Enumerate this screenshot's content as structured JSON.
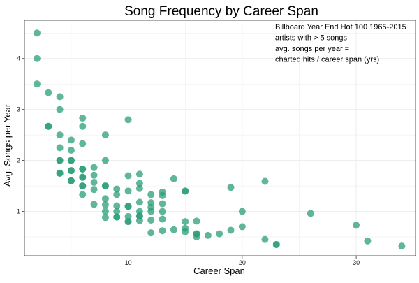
{
  "colors": {
    "point": "#2a9d78",
    "grid": "#ebebeb",
    "panel_border": "#333333",
    "text": "#000000",
    "tick_text": "#222222"
  },
  "chart_data": {
    "type": "scatter",
    "title": "Song Frequency by Career Span",
    "xlabel": "Career Span",
    "ylabel": "Avg. Songs per Year",
    "xlim": [
      0.9,
      35.2
    ],
    "ylim": [
      0.13,
      4.75
    ],
    "xticks": [
      10,
      20,
      30
    ],
    "yticks": [
      1,
      2,
      3,
      4
    ],
    "grid": true,
    "annotation": [
      "Billboard Year End Hot 100 1965-2015",
      "artists with > 5 songs",
      "avg. songs per year =",
      "charted hits / career span (yrs)"
    ],
    "points": [
      {
        "x": 2,
        "y": 4.5
      },
      {
        "x": 2,
        "y": 4.0
      },
      {
        "x": 2,
        "y": 3.5
      },
      {
        "x": 3,
        "y": 3.33
      },
      {
        "x": 3,
        "y": 2.67
      },
      {
        "x": 3,
        "y": 2.67
      },
      {
        "x": 4,
        "y": 3.25
      },
      {
        "x": 4,
        "y": 3.0
      },
      {
        "x": 4,
        "y": 2.5
      },
      {
        "x": 4,
        "y": 2.25
      },
      {
        "x": 4,
        "y": 2.0
      },
      {
        "x": 4,
        "y": 2.0
      },
      {
        "x": 4,
        "y": 1.75
      },
      {
        "x": 4,
        "y": 1.75
      },
      {
        "x": 5,
        "y": 2.4
      },
      {
        "x": 5,
        "y": 2.2
      },
      {
        "x": 5,
        "y": 2.0
      },
      {
        "x": 5,
        "y": 2.0
      },
      {
        "x": 5,
        "y": 1.8
      },
      {
        "x": 5,
        "y": 1.8
      },
      {
        "x": 5,
        "y": 1.6
      },
      {
        "x": 5,
        "y": 1.6
      },
      {
        "x": 6,
        "y": 2.83
      },
      {
        "x": 6,
        "y": 2.67
      },
      {
        "x": 6,
        "y": 2.33
      },
      {
        "x": 6,
        "y": 1.83
      },
      {
        "x": 6,
        "y": 1.83
      },
      {
        "x": 6,
        "y": 1.67
      },
      {
        "x": 6,
        "y": 1.67
      },
      {
        "x": 6,
        "y": 1.5
      },
      {
        "x": 6,
        "y": 1.5
      },
      {
        "x": 6,
        "y": 1.33
      },
      {
        "x": 7,
        "y": 1.86
      },
      {
        "x": 7,
        "y": 1.71
      },
      {
        "x": 7,
        "y": 1.57
      },
      {
        "x": 7,
        "y": 1.43
      },
      {
        "x": 7,
        "y": 1.14
      },
      {
        "x": 8,
        "y": 2.5
      },
      {
        "x": 8,
        "y": 2.0
      },
      {
        "x": 8,
        "y": 1.5
      },
      {
        "x": 8,
        "y": 1.5
      },
      {
        "x": 8,
        "y": 1.25
      },
      {
        "x": 8,
        "y": 1.13
      },
      {
        "x": 8,
        "y": 1.0
      },
      {
        "x": 8,
        "y": 0.88
      },
      {
        "x": 9,
        "y": 1.44
      },
      {
        "x": 9,
        "y": 1.33
      },
      {
        "x": 9,
        "y": 1.11
      },
      {
        "x": 9,
        "y": 1.0
      },
      {
        "x": 9,
        "y": 0.89
      },
      {
        "x": 9,
        "y": 0.89
      },
      {
        "x": 10,
        "y": 2.8
      },
      {
        "x": 10,
        "y": 1.7
      },
      {
        "x": 10,
        "y": 1.4
      },
      {
        "x": 10,
        "y": 1.1
      },
      {
        "x": 10,
        "y": 1.1
      },
      {
        "x": 10,
        "y": 0.9
      },
      {
        "x": 10,
        "y": 0.8
      },
      {
        "x": 10,
        "y": 0.8
      },
      {
        "x": 11,
        "y": 1.73
      },
      {
        "x": 11,
        "y": 1.55
      },
      {
        "x": 11,
        "y": 1.45
      },
      {
        "x": 11,
        "y": 1.18
      },
      {
        "x": 11,
        "y": 1.0
      },
      {
        "x": 11,
        "y": 0.91
      },
      {
        "x": 11,
        "y": 0.91
      },
      {
        "x": 11,
        "y": 0.82
      },
      {
        "x": 12,
        "y": 1.33
      },
      {
        "x": 12,
        "y": 1.17
      },
      {
        "x": 12,
        "y": 1.08
      },
      {
        "x": 12,
        "y": 1.0
      },
      {
        "x": 12,
        "y": 0.83
      },
      {
        "x": 12,
        "y": 0.58
      },
      {
        "x": 13,
        "y": 1.38
      },
      {
        "x": 13,
        "y": 1.31
      },
      {
        "x": 13,
        "y": 1.15
      },
      {
        "x": 13,
        "y": 1.0
      },
      {
        "x": 13,
        "y": 0.85
      },
      {
        "x": 13,
        "y": 0.62
      },
      {
        "x": 14,
        "y": 1.64
      },
      {
        "x": 14,
        "y": 0.64
      },
      {
        "x": 15,
        "y": 1.4
      },
      {
        "x": 15,
        "y": 1.4
      },
      {
        "x": 15,
        "y": 0.8
      },
      {
        "x": 15,
        "y": 0.67
      },
      {
        "x": 15,
        "y": 0.6
      },
      {
        "x": 16,
        "y": 0.81
      },
      {
        "x": 16,
        "y": 0.56
      },
      {
        "x": 16,
        "y": 0.56
      },
      {
        "x": 16,
        "y": 0.5
      },
      {
        "x": 17,
        "y": 0.53
      },
      {
        "x": 18,
        "y": 0.56
      },
      {
        "x": 19,
        "y": 1.47
      },
      {
        "x": 19,
        "y": 0.63
      },
      {
        "x": 20,
        "y": 1.0
      },
      {
        "x": 20,
        "y": 0.7
      },
      {
        "x": 22,
        "y": 1.59
      },
      {
        "x": 22,
        "y": 0.45
      },
      {
        "x": 23,
        "y": 0.35
      },
      {
        "x": 23,
        "y": 0.35
      },
      {
        "x": 26,
        "y": 0.96
      },
      {
        "x": 30,
        "y": 0.73
      },
      {
        "x": 31,
        "y": 0.42
      },
      {
        "x": 34,
        "y": 0.32
      }
    ]
  }
}
